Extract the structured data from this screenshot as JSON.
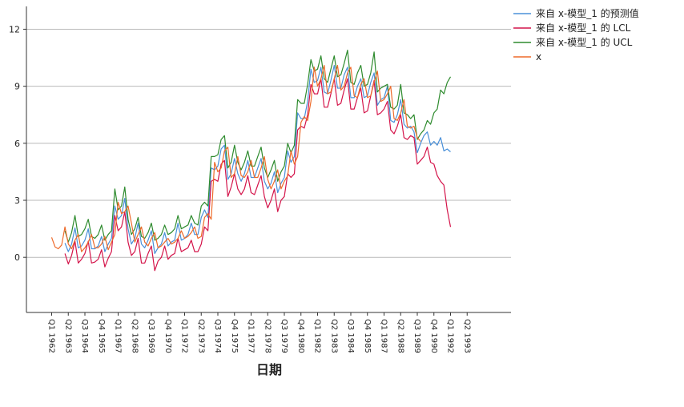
{
  "chart_data": {
    "type": "line",
    "title": "",
    "xlabel": "日期",
    "ylabel": "",
    "ylim": [
      -2.9,
      13.2
    ],
    "yticks": [
      0,
      3,
      6,
      9,
      12
    ],
    "grid": "horizontal",
    "legend_position": "top-right",
    "x_tick_labels": [
      "Q1 1962",
      "Q2 1963",
      "Q3 1964",
      "Q4 1965",
      "Q1 1967",
      "Q2 1968",
      "Q3 1969",
      "Q4 1970",
      "Q1 1972",
      "Q2 1973",
      "Q3 1974",
      "Q4 1975",
      "Q1 1977",
      "Q2 1978",
      "Q3 1979",
      "Q4 1980",
      "Q1 1982",
      "Q2 1983",
      "Q3 1984",
      "Q4 1985",
      "Q1 1987",
      "Q2 1988",
      "Q3 1989",
      "Q4 1990",
      "Q1 1992",
      "Q2 1993"
    ],
    "x_tick_positions": [
      0,
      5,
      10,
      15,
      20,
      25,
      30,
      35,
      40,
      45,
      50,
      55,
      60,
      65,
      70,
      75,
      80,
      85,
      90,
      95,
      100,
      105,
      110,
      115,
      120,
      125
    ],
    "series": [
      {
        "name": "来自 x-模型_1 的预测值",
        "color": "#4a90d9",
        "start_index": 4,
        "values": [
          0.75,
          0.3,
          0.7,
          1.55,
          0.5,
          0.6,
          0.9,
          1.5,
          0.45,
          0.45,
          0.6,
          1.1,
          0.3,
          0.7,
          1.0,
          2.7,
          2.0,
          2.2,
          3.1,
          1.5,
          0.7,
          1.0,
          1.8,
          0.7,
          0.5,
          0.9,
          1.4,
          0.2,
          0.5,
          0.7,
          1.3,
          0.6,
          0.8,
          0.9,
          1.8,
          0.9,
          1.0,
          1.2,
          1.8,
          1.2,
          1.2,
          2.1,
          2.5,
          2.1,
          4.7,
          4.6,
          4.8,
          5.7,
          5.9,
          4.1,
          4.4,
          5.2,
          4.4,
          4.0,
          4.4,
          5.1,
          4.2,
          4.2,
          4.7,
          5.2,
          4.0,
          3.6,
          3.9,
          4.5,
          3.4,
          3.9,
          4.2,
          5.6,
          5.0,
          5.3,
          7.6,
          7.3,
          7.3,
          8.2,
          9.9,
          9.2,
          9.3,
          10.0,
          8.7,
          8.6,
          9.3,
          10.1,
          8.9,
          8.9,
          9.6,
          10.0,
          8.4,
          8.4,
          9.0,
          9.4,
          8.4,
          8.5,
          9.2,
          9.7,
          8.0,
          8.3,
          8.4,
          9.0,
          7.2,
          7.1,
          7.5,
          8.3,
          7.0,
          6.8,
          6.9,
          6.6,
          5.5,
          6.0,
          6.4,
          6.6,
          5.9,
          6.1,
          5.9,
          6.3,
          5.6,
          5.7,
          5.55
        ]
      },
      {
        "name": "来自 x-模型_1 的 LCL",
        "color": "#d4144a",
        "start_index": 4,
        "values": [
          0.2,
          -0.35,
          0.1,
          0.85,
          -0.3,
          -0.1,
          0.2,
          0.85,
          -0.3,
          -0.25,
          -0.1,
          0.4,
          -0.5,
          -0.05,
          0.3,
          2.2,
          1.4,
          1.6,
          2.4,
          0.8,
          0.1,
          0.3,
          1.0,
          -0.3,
          -0.3,
          0.2,
          0.6,
          -0.7,
          -0.2,
          0.0,
          0.6,
          -0.1,
          0.1,
          0.2,
          1.0,
          0.3,
          0.4,
          0.5,
          0.9,
          0.3,
          0.3,
          0.7,
          1.6,
          1.4,
          4.0,
          4.1,
          4.0,
          4.9,
          5.1,
          3.2,
          3.7,
          4.4,
          3.6,
          3.3,
          3.6,
          4.3,
          3.4,
          3.3,
          3.8,
          4.3,
          3.2,
          2.6,
          3.0,
          3.6,
          2.4,
          3.0,
          3.2,
          4.4,
          4.2,
          4.4,
          6.7,
          6.9,
          6.8,
          7.5,
          9.1,
          8.6,
          8.6,
          9.4,
          7.9,
          7.9,
          8.6,
          9.4,
          8.0,
          8.1,
          8.8,
          9.4,
          7.8,
          7.8,
          8.4,
          8.9,
          7.6,
          7.7,
          8.5,
          9.3,
          7.5,
          7.6,
          7.8,
          8.2,
          6.7,
          6.5,
          6.9,
          7.5,
          6.3,
          6.2,
          6.4,
          6.3,
          4.9,
          5.1,
          5.3,
          5.8,
          5.0,
          4.9,
          4.3,
          4.0,
          3.8,
          2.5,
          1.6
        ]
      },
      {
        "name": "来自 x-模型_1 的 UCL",
        "color": "#2e8b2e",
        "start_index": 4,
        "values": [
          1.4,
          0.8,
          1.3,
          2.2,
          1.1,
          1.2,
          1.5,
          2.0,
          1.1,
          1.0,
          1.2,
          1.7,
          0.9,
          1.2,
          1.4,
          3.6,
          2.5,
          2.7,
          3.7,
          2.0,
          1.2,
          1.5,
          2.1,
          1.1,
          1.0,
          1.3,
          1.8,
          0.9,
          1.0,
          1.2,
          1.7,
          1.2,
          1.3,
          1.5,
          2.2,
          1.5,
          1.6,
          1.7,
          2.2,
          1.8,
          1.7,
          2.7,
          2.9,
          2.7,
          5.3,
          5.3,
          5.4,
          6.2,
          6.4,
          4.7,
          5.0,
          5.9,
          5.0,
          4.6,
          5.0,
          5.6,
          4.8,
          4.8,
          5.3,
          5.8,
          4.7,
          4.2,
          4.6,
          5.1,
          4.0,
          4.5,
          4.8,
          6.0,
          5.5,
          5.9,
          8.3,
          8.1,
          8.1,
          9.1,
          10.4,
          9.8,
          9.9,
          10.6,
          9.4,
          9.2,
          9.9,
          10.6,
          9.5,
          9.6,
          10.2,
          10.9,
          9.2,
          9.1,
          9.7,
          10.1,
          9.0,
          9.1,
          9.7,
          10.8,
          8.7,
          8.9,
          9.0,
          9.1,
          7.9,
          7.8,
          8.0,
          9.1,
          7.6,
          7.5,
          7.3,
          7.5,
          6.2,
          6.5,
          6.7,
          7.2,
          7.0,
          7.6,
          7.8,
          8.8,
          8.6,
          9.2,
          9.5
        ]
      },
      {
        "name": "x",
        "color": "#ee6a2a",
        "start_index": 0,
        "values": [
          1.05,
          0.55,
          0.45,
          0.65,
          1.6,
          0.7,
          0.45,
          0.9,
          1.2,
          0.3,
          0.5,
          0.8,
          1.2,
          0.5,
          0.5,
          0.7,
          1.1,
          0.4,
          0.8,
          1.2,
          2.9,
          2.3,
          2.4,
          2.7,
          1.8,
          0.8,
          1.2,
          1.6,
          0.8,
          0.6,
          1.0,
          1.3,
          0.5,
          0.6,
          0.8,
          1.0,
          0.7,
          0.8,
          1.0,
          1.4,
          1.0,
          1.1,
          1.3,
          1.6,
          1.0,
          1.1,
          2.1,
          2.3,
          2.0,
          5.0,
          4.5,
          4.7,
          5.6,
          5.8,
          4.2,
          4.4,
          5.3,
          4.3,
          4.2,
          4.5,
          5.1,
          4.2,
          4.2,
          4.7,
          5.3,
          4.1,
          3.6,
          4.0,
          4.6,
          3.6,
          4.0,
          4.3,
          5.6,
          4.9,
          5.3,
          7.1,
          7.4,
          7.2,
          8.2,
          10.0,
          9.0,
          9.4,
          10.1,
          8.6,
          8.7,
          9.4,
          10.1,
          8.8,
          9.0,
          9.7,
          10.0,
          8.5,
          8.4,
          9.1,
          9.4,
          8.4,
          8.5,
          9.2,
          9.8,
          8.2,
          8.3,
          8.6,
          9.0,
          7.3,
          7.2,
          7.6,
          8.3,
          6.9,
          6.8,
          6.9,
          6.3,
          6.1
        ]
      }
    ]
  }
}
